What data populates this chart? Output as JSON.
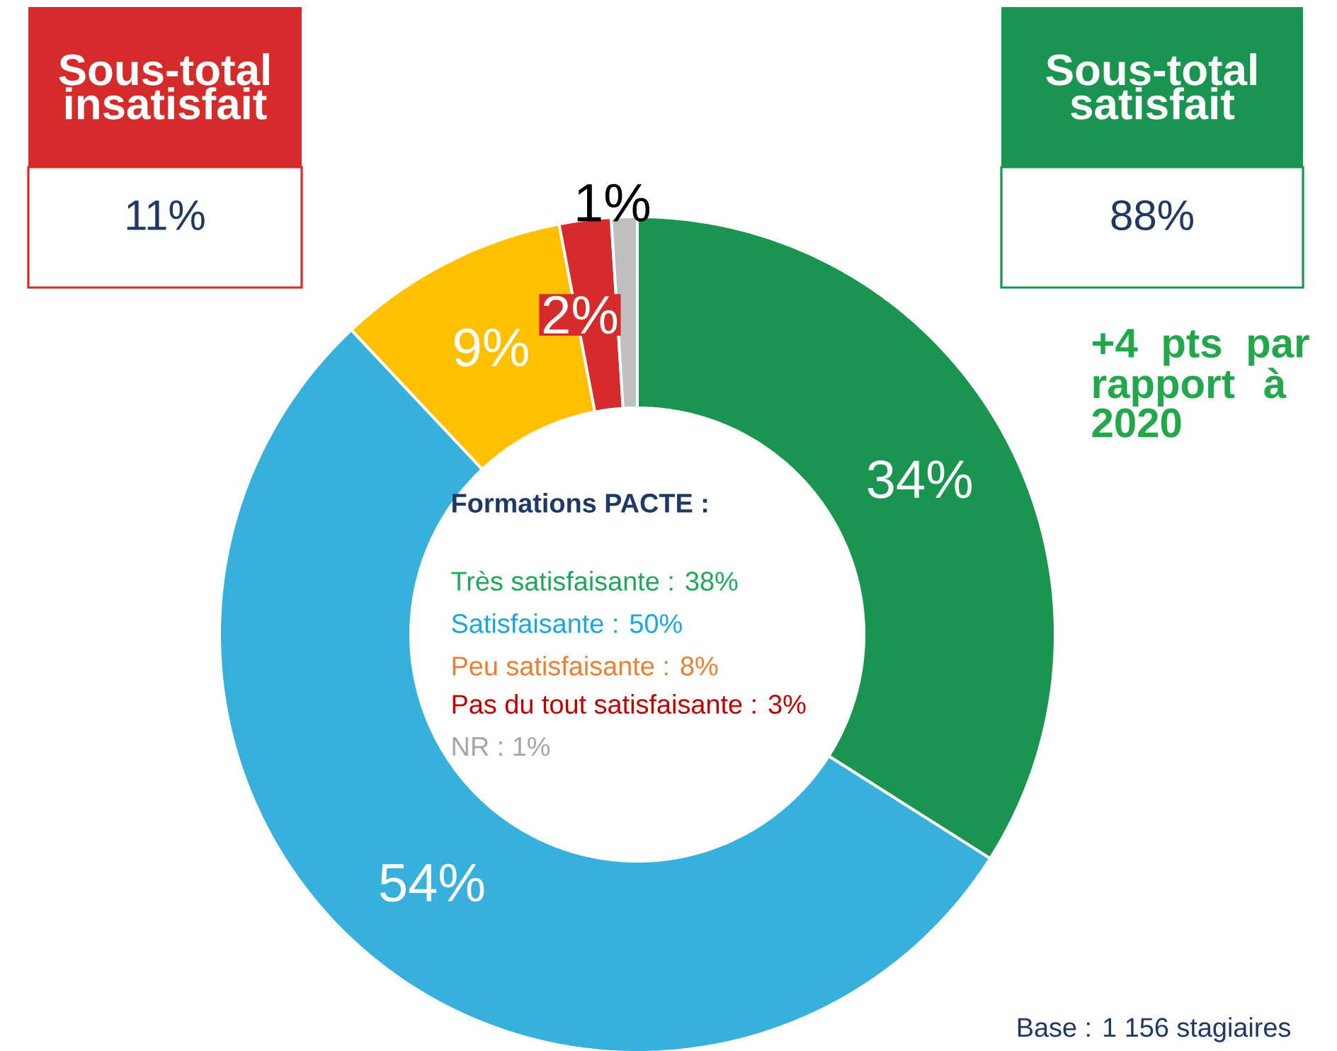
{
  "chart_data": {
    "type": "donut",
    "categories": [
      null,
      null,
      null,
      null,
      null
    ],
    "values": [
      34,
      54,
      9,
      2,
      1
    ],
    "colors": [
      "#1a9550",
      "#37b1dc",
      "#ffc000",
      "#d62b2b",
      "#bfbfbf"
    ],
    "value_labels": [
      "34%",
      "54%",
      "9%",
      "2%",
      "1%"
    ],
    "annotations": [
      "Sous-total insatisfait",
      "11%",
      "Sous-total satisfait",
      "88%",
      "+4 pts par rapport à 2020",
      "Formations PACTE :",
      "Très satisfaisante : 38%",
      "Satisfaisante : 50%",
      "Peu satisfaisante : 8%",
      "Pas du tout satisfaisante : 3%",
      "NR : 1%",
      "Base : 1 156 stagiaires"
    ]
  }
}
